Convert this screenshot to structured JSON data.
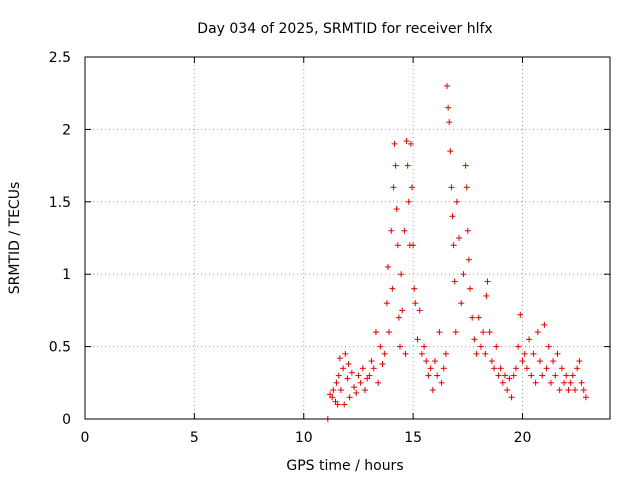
{
  "chart_data": {
    "type": "scatter",
    "title": "Day 034 of 2025, SRMTID for receiver hlfx",
    "xlabel": "GPS time / hours",
    "ylabel": "SRMTID / TECUs",
    "xlim": [
      0,
      24
    ],
    "ylim": [
      0,
      2.5
    ],
    "x_ticks": [
      0,
      5,
      10,
      15,
      20
    ],
    "y_ticks": [
      0,
      0.5,
      1,
      1.5,
      2,
      2.5
    ],
    "x_tick_labels": [
      "0",
      "5",
      "10",
      "15",
      "20"
    ],
    "y_tick_labels": [
      "0",
      "0.5",
      "1",
      "1.5",
      "2",
      "2.5"
    ],
    "grid": true,
    "marker": "+",
    "colors": {
      "series": "#e00000",
      "grid": "#a0a0a0",
      "axes": "#000000"
    },
    "series": [
      {
        "name": "SRMTID",
        "points": [
          [
            11.1,
            0.0
          ],
          [
            11.2,
            0.17
          ],
          [
            11.3,
            0.15
          ],
          [
            11.35,
            0.2
          ],
          [
            11.45,
            0.12
          ],
          [
            11.5,
            0.25
          ],
          [
            11.55,
            0.1
          ],
          [
            11.6,
            0.3
          ],
          [
            11.65,
            0.42
          ],
          [
            11.7,
            0.2
          ],
          [
            11.8,
            0.35
          ],
          [
            11.85,
            0.1
          ],
          [
            11.9,
            0.45
          ],
          [
            12.0,
            0.28
          ],
          [
            12.05,
            0.38
          ],
          [
            12.1,
            0.15
          ],
          [
            12.2,
            0.32
          ],
          [
            12.3,
            0.22
          ],
          [
            12.4,
            0.18
          ],
          [
            12.5,
            0.3
          ],
          [
            12.6,
            0.25
          ],
          [
            12.7,
            0.35
          ],
          [
            12.8,
            0.2
          ],
          [
            12.9,
            0.28
          ],
          [
            13.0,
            0.3
          ],
          [
            13.1,
            0.4
          ],
          [
            13.2,
            0.35
          ],
          [
            13.3,
            0.6
          ],
          [
            13.4,
            0.25
          ],
          [
            13.5,
            0.5
          ],
          [
            13.6,
            0.38
          ],
          [
            13.7,
            0.45
          ],
          [
            13.8,
            0.8
          ],
          [
            13.85,
            1.05
          ],
          [
            13.9,
            0.6
          ],
          [
            14.0,
            1.3
          ],
          [
            14.05,
            0.9
          ],
          [
            14.1,
            1.6
          ],
          [
            14.15,
            1.9
          ],
          [
            14.2,
            1.75
          ],
          [
            14.25,
            1.45
          ],
          [
            14.3,
            1.2
          ],
          [
            14.35,
            0.7
          ],
          [
            14.4,
            0.5
          ],
          [
            14.45,
            1.0
          ],
          [
            14.5,
            0.75
          ],
          [
            14.6,
            1.3
          ],
          [
            14.65,
            0.45
          ],
          [
            14.7,
            1.92
          ],
          [
            14.75,
            1.75
          ],
          [
            14.8,
            1.5
          ],
          [
            14.85,
            1.2
          ],
          [
            14.9,
            1.9
          ],
          [
            14.95,
            1.6
          ],
          [
            15.0,
            1.2
          ],
          [
            15.05,
            0.9
          ],
          [
            15.1,
            0.8
          ],
          [
            15.2,
            0.55
          ],
          [
            15.3,
            0.75
          ],
          [
            15.4,
            0.45
          ],
          [
            15.5,
            0.5
          ],
          [
            15.6,
            0.4
          ],
          [
            15.7,
            0.3
          ],
          [
            15.8,
            0.35
          ],
          [
            15.9,
            0.2
          ],
          [
            16.0,
            0.4
          ],
          [
            16.1,
            0.3
          ],
          [
            16.2,
            0.6
          ],
          [
            16.3,
            0.25
          ],
          [
            16.4,
            0.35
          ],
          [
            16.5,
            0.45
          ],
          [
            16.55,
            2.3
          ],
          [
            16.6,
            2.15
          ],
          [
            16.65,
            2.05
          ],
          [
            16.7,
            1.85
          ],
          [
            16.75,
            1.6
          ],
          [
            16.8,
            1.4
          ],
          [
            16.85,
            1.2
          ],
          [
            16.9,
            0.95
          ],
          [
            16.95,
            0.6
          ],
          [
            17.0,
            1.5
          ],
          [
            17.1,
            1.25
          ],
          [
            17.2,
            0.8
          ],
          [
            17.3,
            1.0
          ],
          [
            17.4,
            1.75
          ],
          [
            17.45,
            1.6
          ],
          [
            17.5,
            1.3
          ],
          [
            17.55,
            1.1
          ],
          [
            17.6,
            0.9
          ],
          [
            17.7,
            0.7
          ],
          [
            17.8,
            0.55
          ],
          [
            17.9,
            0.45
          ],
          [
            18.0,
            0.7
          ],
          [
            18.1,
            0.5
          ],
          [
            18.2,
            0.6
          ],
          [
            18.3,
            0.45
          ],
          [
            18.35,
            0.85
          ],
          [
            18.4,
            0.95
          ],
          [
            18.5,
            0.6
          ],
          [
            18.6,
            0.4
          ],
          [
            18.7,
            0.35
          ],
          [
            18.8,
            0.5
          ],
          [
            18.9,
            0.3
          ],
          [
            19.0,
            0.35
          ],
          [
            19.1,
            0.25
          ],
          [
            19.2,
            0.3
          ],
          [
            19.3,
            0.2
          ],
          [
            19.4,
            0.28
          ],
          [
            19.5,
            0.15
          ],
          [
            19.6,
            0.3
          ],
          [
            19.7,
            0.35
          ],
          [
            19.8,
            0.5
          ],
          [
            19.9,
            0.72
          ],
          [
            20.0,
            0.4
          ],
          [
            20.1,
            0.45
          ],
          [
            20.2,
            0.35
          ],
          [
            20.3,
            0.55
          ],
          [
            20.4,
            0.3
          ],
          [
            20.5,
            0.45
          ],
          [
            20.6,
            0.25
          ],
          [
            20.7,
            0.6
          ],
          [
            20.8,
            0.4
          ],
          [
            20.9,
            0.3
          ],
          [
            21.0,
            0.65
          ],
          [
            21.1,
            0.35
          ],
          [
            21.2,
            0.5
          ],
          [
            21.3,
            0.25
          ],
          [
            21.4,
            0.4
          ],
          [
            21.5,
            0.3
          ],
          [
            21.6,
            0.45
          ],
          [
            21.7,
            0.2
          ],
          [
            21.8,
            0.35
          ],
          [
            21.9,
            0.25
          ],
          [
            22.0,
            0.3
          ],
          [
            22.1,
            0.2
          ],
          [
            22.2,
            0.25
          ],
          [
            22.3,
            0.3
          ],
          [
            22.4,
            0.2
          ],
          [
            22.5,
            0.35
          ],
          [
            22.6,
            0.4
          ],
          [
            22.7,
            0.25
          ],
          [
            22.8,
            0.2
          ],
          [
            22.9,
            0.15
          ]
        ]
      }
    ]
  }
}
